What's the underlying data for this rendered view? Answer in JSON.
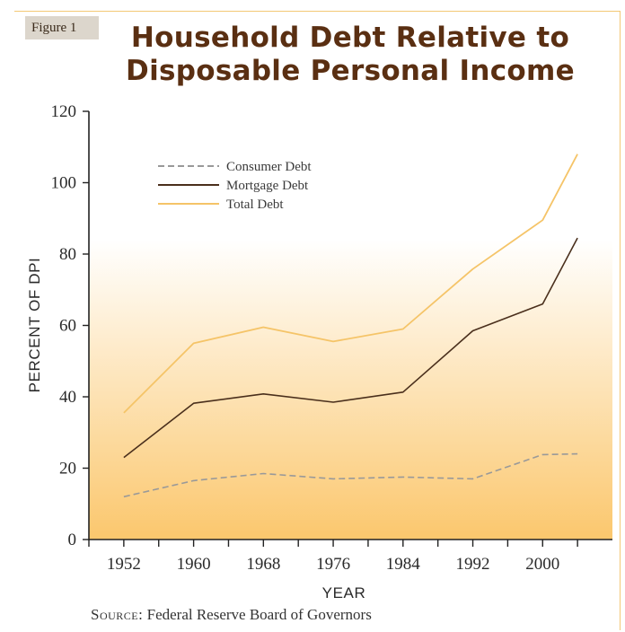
{
  "figure_label": "Figure 1",
  "title_line1": "Household Debt Relative to",
  "title_line2": "Disposable Personal Income",
  "source_prefix": "Source:",
  "source_text": "Federal Reserve Board of Governors",
  "colors": {
    "consumer": "#999999",
    "mortgage": "#4a2f1c",
    "total": "#f5c468",
    "gradient_top": "#ffffff",
    "gradient_bottom": "#fbc76d"
  },
  "chart_data": {
    "type": "line",
    "xlabel": "YEAR",
    "ylabel": "PERCENT OF DPI",
    "ylim": [
      0,
      120
    ],
    "xlim": [
      1948,
      2008
    ],
    "yticks": [
      0,
      20,
      40,
      60,
      80,
      100,
      120
    ],
    "xticks": [
      "1952",
      "1960",
      "1968",
      "1976",
      "1984",
      "1992",
      "2000"
    ],
    "grid": false,
    "legend_position": "top-left",
    "x": [
      1952,
      1960,
      1968,
      1976,
      1984,
      1992,
      2000,
      2004
    ],
    "series": [
      {
        "name": "Consumer Debt",
        "style": "dashed",
        "values": [
          12.0,
          16.5,
          18.5,
          17.0,
          17.5,
          17.0,
          23.8,
          24.0
        ]
      },
      {
        "name": "Mortgage Debt",
        "style": "solid",
        "values": [
          23.0,
          38.2,
          40.8,
          38.5,
          41.3,
          58.5,
          66.0,
          84.5
        ]
      },
      {
        "name": "Total Debt",
        "style": "solid",
        "values": [
          35.5,
          55.0,
          59.5,
          55.5,
          59.0,
          75.8,
          89.5,
          108.0
        ]
      }
    ]
  }
}
